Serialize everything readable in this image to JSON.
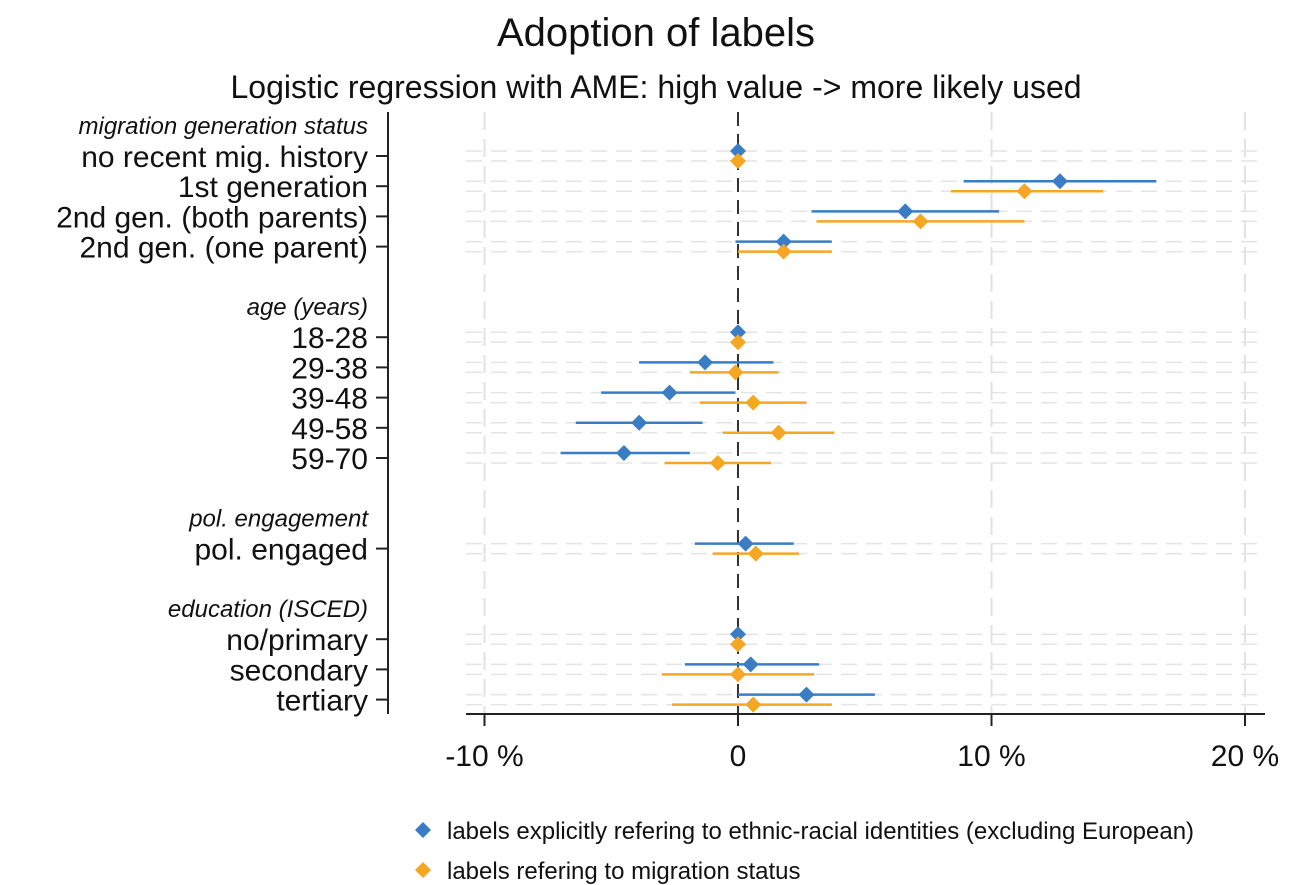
{
  "chart_data": {
    "type": "scatter",
    "subtype": "coefficient-plot",
    "title": "Adoption of labels",
    "subtitle": "Logistic regression with AME: high value -> more likely used",
    "xlabel": "",
    "ylabel": "",
    "xlim": [
      -10.5,
      20.5
    ],
    "xticks": [
      -10,
      0,
      10,
      20
    ],
    "xtick_labels": [
      "-10 %",
      "0",
      "10 %",
      "20 %"
    ],
    "reference_line": 0,
    "grid": true,
    "legend_position": "bottom",
    "groups": [
      {
        "label": "migration generation status",
        "rows": [
          {
            "label": "no recent mig. history",
            "ethnic": [
              0,
              0,
              0
            ],
            "migration": [
              0,
              0,
              0
            ]
          },
          {
            "label": "1st generation",
            "ethnic": [
              12.7,
              8.9,
              16.5
            ],
            "migration": [
              11.3,
              8.4,
              14.4
            ]
          },
          {
            "label": "2nd gen. (both parents)",
            "ethnic": [
              6.6,
              2.9,
              10.3
            ],
            "migration": [
              7.2,
              3.1,
              11.3
            ]
          },
          {
            "label": "2nd gen. (one parent)",
            "ethnic": [
              1.8,
              -0.1,
              3.7
            ],
            "migration": [
              1.8,
              0.0,
              3.7
            ]
          }
        ]
      },
      {
        "label": "age (years)",
        "rows": [
          {
            "label": "18-28",
            "ethnic": [
              0,
              0,
              0
            ],
            "migration": [
              0,
              0,
              0
            ]
          },
          {
            "label": "29-38",
            "ethnic": [
              -1.3,
              -3.9,
              1.4
            ],
            "migration": [
              -0.1,
              -1.9,
              1.6
            ]
          },
          {
            "label": "39-48",
            "ethnic": [
              -2.7,
              -5.4,
              -0.1
            ],
            "migration": [
              0.6,
              -1.5,
              2.7
            ]
          },
          {
            "label": "49-58",
            "ethnic": [
              -3.9,
              -6.4,
              -1.4
            ],
            "migration": [
              1.6,
              -0.6,
              3.8
            ]
          },
          {
            "label": "59-70",
            "ethnic": [
              -4.5,
              -7.0,
              -1.9
            ],
            "migration": [
              -0.8,
              -2.9,
              1.3
            ]
          }
        ]
      },
      {
        "label": "pol. engagement",
        "rows": [
          {
            "label": "pol. engaged",
            "ethnic": [
              0.3,
              -1.7,
              2.2
            ],
            "migration": [
              0.7,
              -1.0,
              2.4
            ]
          }
        ]
      },
      {
        "label": "education (ISCED)",
        "rows": [
          {
            "label": "no/primary",
            "ethnic": [
              0,
              0,
              0
            ],
            "migration": [
              0,
              0,
              0
            ]
          },
          {
            "label": "secondary",
            "ethnic": [
              0.5,
              -2.1,
              3.2
            ],
            "migration": [
              0.0,
              -3.0,
              3.0
            ]
          },
          {
            "label": "tertiary",
            "ethnic": [
              2.7,
              0.0,
              5.4
            ],
            "migration": [
              0.6,
              -2.6,
              3.7
            ]
          }
        ]
      }
    ],
    "series": [
      {
        "key": "ethnic",
        "name": "labels explicitly refering to ethnic-racial identities (excluding European)",
        "color": "#3a7dc4"
      },
      {
        "key": "migration",
        "name": "labels refering to migration status",
        "color": "#f5a623"
      }
    ]
  }
}
